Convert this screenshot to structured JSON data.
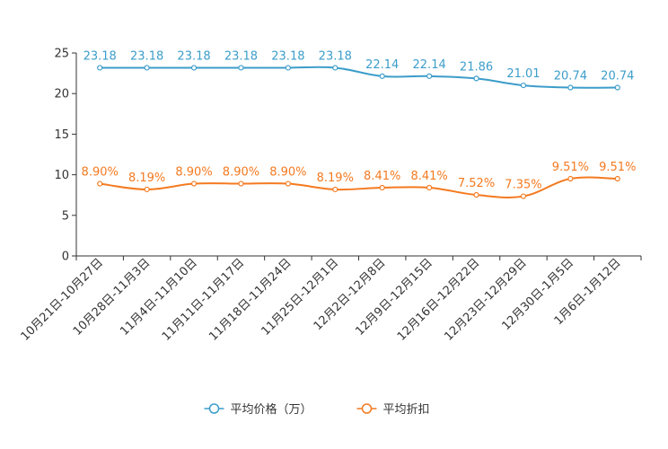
{
  "chart_data": {
    "type": "line",
    "title": "",
    "xlabel": "",
    "ylabel": "",
    "ylim": [
      0,
      25
    ],
    "yticks": [
      0,
      5,
      10,
      15,
      20,
      25
    ],
    "grid": false,
    "legend_position": "bottom-center",
    "categories": [
      "10月21日-10月27日",
      "10月28日-11月3日",
      "11月4日-11月10日",
      "11月11日-11月17日",
      "11月18日-11月24日",
      "11月25日-12月1日",
      "12月2日-12月8日",
      "12月9日-12月15日",
      "12月16日-12月22日",
      "12月23日-12月29日",
      "12月30日-1月5日",
      "1月6日-1月12日"
    ],
    "series": [
      {
        "name": "平均价格（万）",
        "color": "#3c9dca",
        "values": [
          23.18,
          23.18,
          23.18,
          23.18,
          23.18,
          23.18,
          22.14,
          22.14,
          21.86,
          21.01,
          20.74,
          20.74
        ],
        "labels": [
          "23.18",
          "23.18",
          "23.18",
          "23.18",
          "23.18",
          "23.18",
          "22.14",
          "22.14",
          "21.86",
          "21.01",
          "20.74",
          "20.74"
        ]
      },
      {
        "name": "平均折扣",
        "color": "#f47a20",
        "values": [
          8.9,
          8.19,
          8.9,
          8.9,
          8.9,
          8.19,
          8.41,
          8.41,
          7.52,
          7.35,
          9.51,
          9.51
        ],
        "labels": [
          "8.90%",
          "8.19%",
          "8.90%",
          "8.90%",
          "8.90%",
          "8.19%",
          "8.41%",
          "8.41%",
          "7.52%",
          "7.35%",
          "9.51%",
          "9.51%"
        ]
      }
    ]
  }
}
